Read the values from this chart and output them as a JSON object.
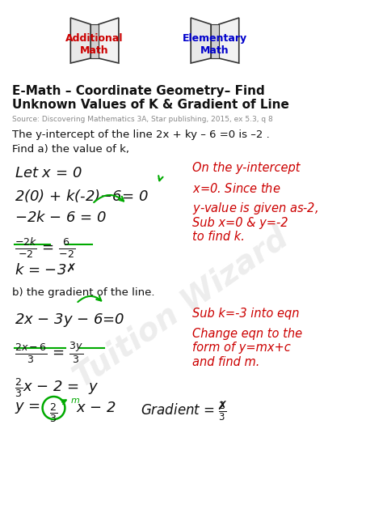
{
  "bg_color": "#ffffff",
  "title_line1": "E-Math – Coordinate Geometry– Find",
  "title_line2": "Unknown Values of K & Gradient of Line",
  "source": "Source: Discovering Mathematics 3A, Star publishing, 2015, ex 5.3, q 8",
  "problem": "The y-intercept of the line 2x + ky – 6 =0 is –2 .",
  "find_a": "Find a) the value of k,",
  "find_b": "b) the gradient of the line.",
  "watermark": "Tuition Wizard",
  "add_math_label": "Additional\nMath",
  "elem_math_label": "Elementary\nMath"
}
